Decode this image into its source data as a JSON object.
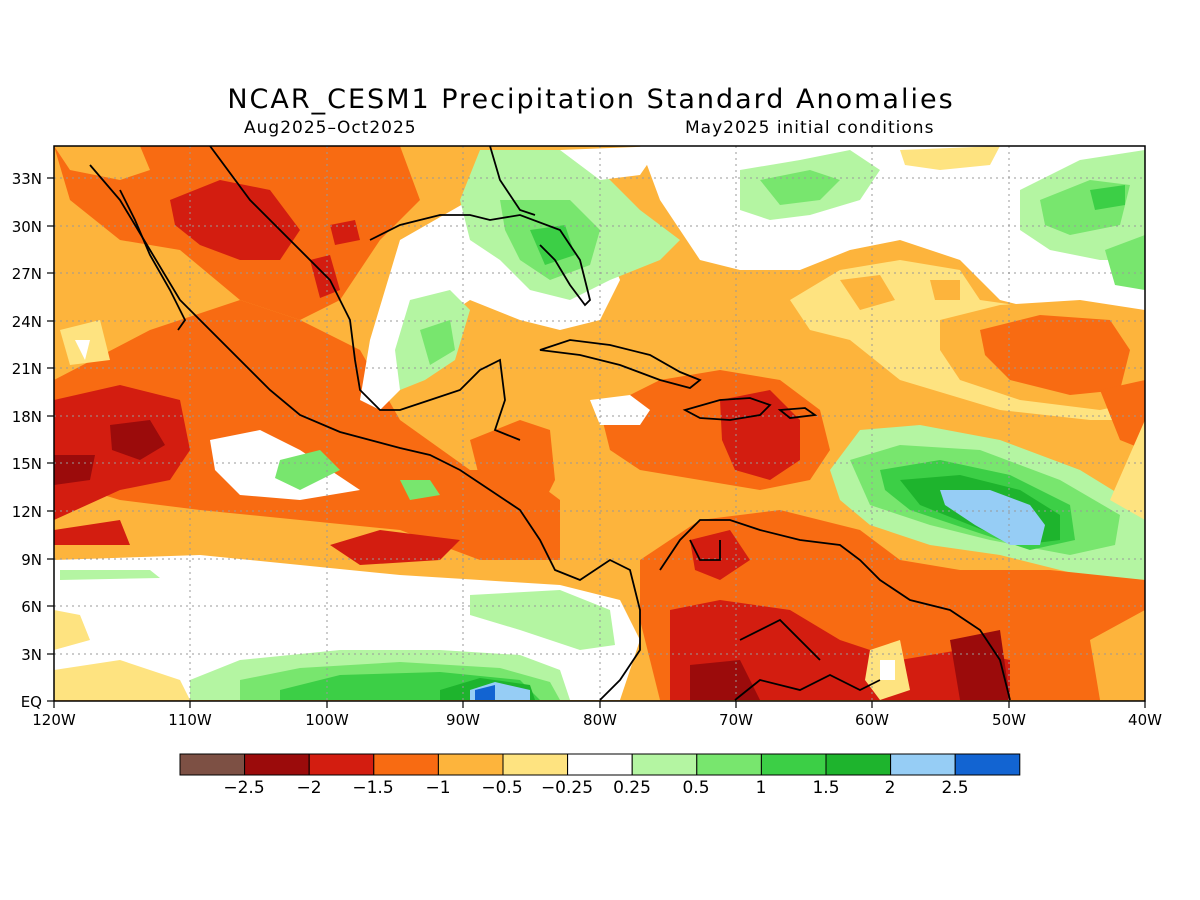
{
  "title": "NCAR_CESM1 Precipitation Standard Anomalies",
  "subtitle_left": "Aug2025–Oct2025",
  "subtitle_right": "May2025 initial conditions",
  "lat_labels": [
    "33N",
    "30N",
    "27N",
    "24N",
    "21N",
    "18N",
    "15N",
    "12N",
    "9N",
    "6N",
    "3N",
    "EQ"
  ],
  "lon_labels": [
    "120W",
    "110W",
    "100W",
    "90W",
    "80W",
    "70W",
    "60W",
    "50W",
    "40W"
  ],
  "colorbar": {
    "colors": [
      "#7d5044",
      "#9b0b0b",
      "#d31d10",
      "#f86b12",
      "#fdb43c",
      "#fee380",
      "#ffffff",
      "#b4f5a2",
      "#78e66e",
      "#3ccf46",
      "#1eb42d",
      "#96cdf5",
      "#1264d2"
    ],
    "labels": [
      "−2.5",
      "−2",
      "−1.5",
      "−1",
      "−0.5",
      "−0.25",
      "0.25",
      "0.5",
      "1",
      "1.5",
      "2",
      "2.5"
    ]
  }
}
